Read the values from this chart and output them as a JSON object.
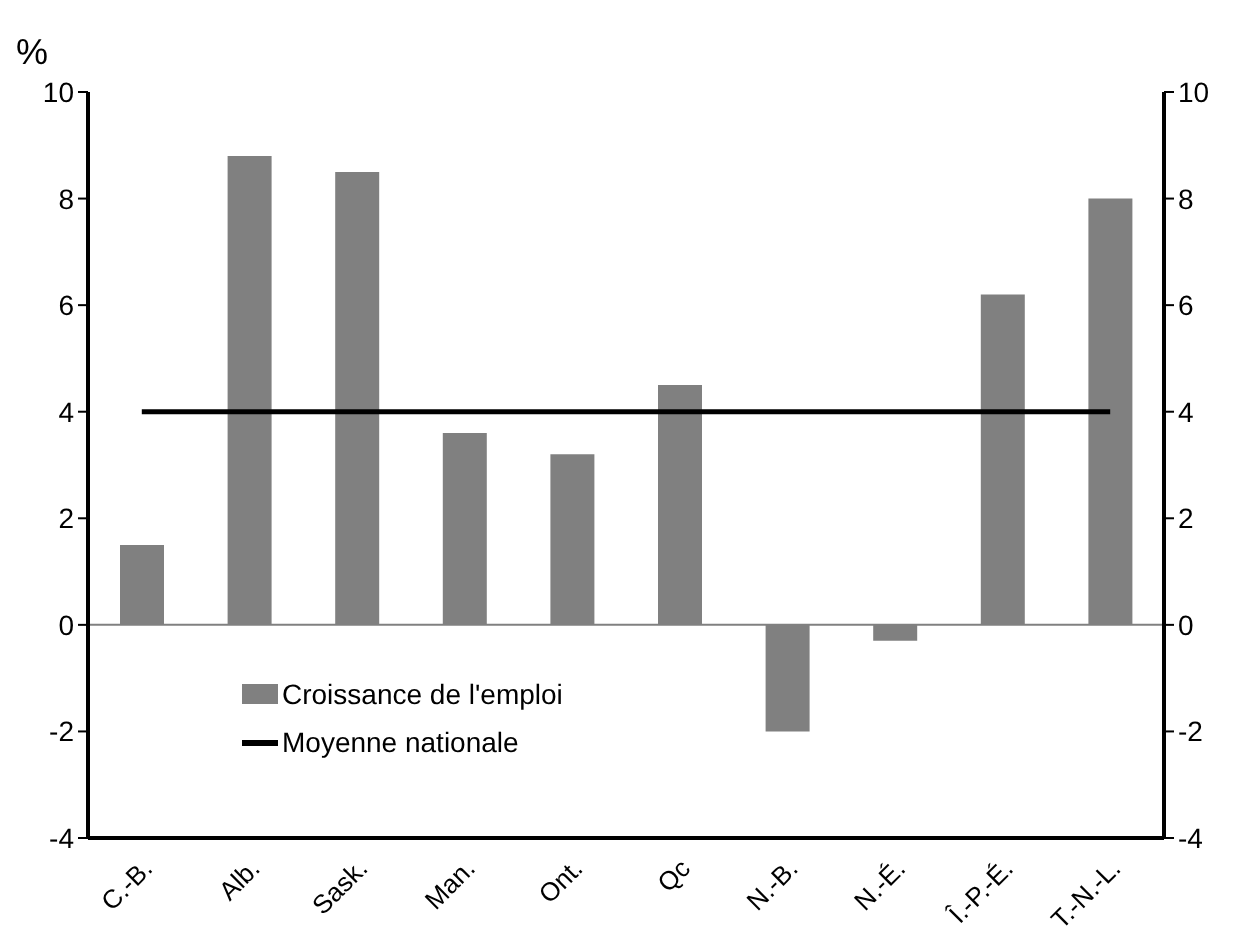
{
  "chart_data": {
    "type": "bar",
    "ylabel": "%",
    "categories": [
      "C.-B.",
      "Alb.",
      "Sask.",
      "Man.",
      "Ont.",
      "Qc",
      "N.-B.",
      "N.-É.",
      "Î.-P.-É.",
      "T.-N.-L."
    ],
    "series": [
      {
        "name": "Croissance de l'emploi",
        "color": "#808080",
        "values": [
          1.5,
          8.8,
          8.5,
          3.6,
          3.2,
          4.5,
          -2.0,
          -0.3,
          6.2,
          8.0
        ]
      },
      {
        "name": "Moyenne nationale",
        "type": "line",
        "axis": "y2",
        "color": "#000000",
        "values": [
          4,
          4,
          4,
          4,
          4,
          4,
          4,
          4,
          4,
          4
        ]
      }
    ],
    "ylim": [
      -4,
      10
    ],
    "yticks": [
      -4,
      -2,
      0,
      2,
      4,
      6,
      8,
      10
    ],
    "y2lim": [
      -4,
      10
    ],
    "y2ticks": [
      -4,
      -2,
      0,
      2,
      4,
      6,
      8,
      10
    ],
    "legend": "bottom left",
    "marker": "none",
    "line_style": "solid"
  }
}
